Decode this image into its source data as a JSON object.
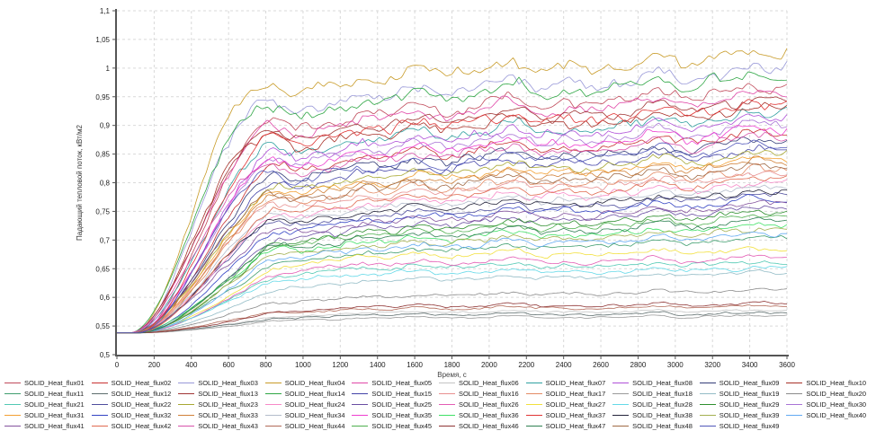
{
  "figure": {
    "background": "#ffffff",
    "x_axis_title": "Время, с",
    "y_axis_title": "Падающий тепловой поток, кВт/м2"
  },
  "chart_data": {
    "type": "line",
    "title": "",
    "xlabel": "Время, с",
    "ylabel": "Падающий тепловой поток, кВт/м2",
    "xlim": [
      0,
      3600
    ],
    "ylim": [
      0.5,
      1.1
    ],
    "x_ticks": [
      0,
      200,
      400,
      600,
      800,
      1000,
      1200,
      1400,
      1600,
      1800,
      2000,
      2200,
      2400,
      2600,
      2800,
      3000,
      3200,
      3400,
      3600
    ],
    "y_ticks": [
      0.5,
      0.55,
      0.6,
      0.65,
      0.7,
      0.75,
      0.8,
      0.85,
      0.9,
      0.95,
      1,
      1.05,
      1.1
    ],
    "y_tick_labels": [
      "0,5",
      "0,55",
      "0,6",
      "0,65",
      "0,7",
      "0,75",
      "0,8",
      "0,85",
      "0,9",
      "0,95",
      "1",
      "1,05",
      "1,1"
    ],
    "decimal_separator": ",",
    "grid": true,
    "grid_style": "dashed",
    "legend_position": "bottom",
    "shape_note": "All 49 series start near 0.538 kW/m2 at t=0, rise steeply between ~100 s and ~800 s, then fluctuate around a plateau that drifts slowly upward until t=3600 s. 'plateau' = value near t=1000 s, 'end' = value near t=3600 s.",
    "start_value": 0.538,
    "series": [
      {
        "name": "SOLID_Heat_flux01",
        "color": "#c04a5a",
        "plateau": 0.905,
        "end": 0.968
      },
      {
        "name": "SOLID_Heat_flux02",
        "color": "#c83232",
        "plateau": 0.832,
        "end": 0.888
      },
      {
        "name": "SOLID_Heat_flux03",
        "color": "#9898d8",
        "plateau": 0.935,
        "end": 1.0
      },
      {
        "name": "SOLID_Heat_flux04",
        "color": "#c89b28",
        "plateau": 0.965,
        "end": 1.03
      },
      {
        "name": "SOLID_Heat_flux05",
        "color": "#e048a8",
        "plateau": 0.895,
        "end": 0.956
      },
      {
        "name": "SOLID_Heat_flux06",
        "color": "#c4c4c4",
        "plateau": 0.572,
        "end": 0.578
      },
      {
        "name": "SOLID_Heat_flux07",
        "color": "#2fa0a0",
        "plateau": 0.862,
        "end": 0.922
      },
      {
        "name": "SOLID_Heat_flux08",
        "color": "#b050d8",
        "plateau": 0.855,
        "end": 0.914
      },
      {
        "name": "SOLID_Heat_flux09",
        "color": "#343c78",
        "plateau": 0.818,
        "end": 0.874
      },
      {
        "name": "SOLID_Heat_flux10",
        "color": "#a83028",
        "plateau": 0.87,
        "end": 0.93
      },
      {
        "name": "SOLID_Heat_flux11",
        "color": "#3f9e6e",
        "plateau": 0.672,
        "end": 0.705
      },
      {
        "name": "SOLID_Heat_flux12",
        "color": "#5d6d6d",
        "plateau": 0.568,
        "end": 0.573
      },
      {
        "name": "SOLID_Heat_flux13",
        "color": "#a03434",
        "plateau": 0.885,
        "end": 0.945
      },
      {
        "name": "SOLID_Heat_flux14",
        "color": "#2ea644",
        "plateau": 0.925,
        "end": 0.988
      },
      {
        "name": "SOLID_Heat_flux15",
        "color": "#4343a8",
        "plateau": 0.805,
        "end": 0.86
      },
      {
        "name": "SOLID_Heat_flux16",
        "color": "#e89090",
        "plateau": 0.765,
        "end": 0.816
      },
      {
        "name": "SOLID_Heat_flux17",
        "color": "#e38a64",
        "plateau": 0.772,
        "end": 0.824
      },
      {
        "name": "SOLID_Heat_flux18",
        "color": "#9a9a9a",
        "plateau": 0.563,
        "end": 0.568
      },
      {
        "name": "SOLID_Heat_flux19",
        "color": "#93bcc6",
        "plateau": 0.625,
        "end": 0.645
      },
      {
        "name": "SOLID_Heat_flux20",
        "color": "#8a8a8a",
        "plateau": 0.598,
        "end": 0.614
      },
      {
        "name": "SOLID_Heat_flux21",
        "color": "#52c9b4",
        "plateau": 0.648,
        "end": 0.662
      },
      {
        "name": "SOLID_Heat_flux22",
        "color": "#4f4e9e",
        "plateau": 0.732,
        "end": 0.78
      },
      {
        "name": "SOLID_Heat_flux23",
        "color": "#a8a832",
        "plateau": 0.798,
        "end": 0.852
      },
      {
        "name": "SOLID_Heat_flux24",
        "color": "#f78ac8",
        "plateau": 0.752,
        "end": 0.801
      },
      {
        "name": "SOLID_Heat_flux25",
        "color": "#6a4ea2",
        "plateau": 0.714,
        "end": 0.757
      },
      {
        "name": "SOLID_Heat_flux26",
        "color": "#e35cb4",
        "plateau": 0.655,
        "end": 0.67
      },
      {
        "name": "SOLID_Heat_flux27",
        "color": "#f2e03c",
        "plateau": 0.668,
        "end": 0.684
      },
      {
        "name": "SOLID_Heat_flux28",
        "color": "#64d9e8",
        "plateau": 0.638,
        "end": 0.652
      },
      {
        "name": "SOLID_Heat_flux29",
        "color": "#2f8f2f",
        "plateau": 0.708,
        "end": 0.75
      },
      {
        "name": "SOLID_Heat_flux30",
        "color": "#a973d6",
        "plateau": 0.845,
        "end": 0.903
      },
      {
        "name": "SOLID_Heat_flux31",
        "color": "#f2a033",
        "plateau": 0.79,
        "end": 0.843
      },
      {
        "name": "SOLID_Heat_flux32",
        "color": "#3343c4",
        "plateau": 0.726,
        "end": 0.773
      },
      {
        "name": "SOLID_Heat_flux33",
        "color": "#d08038",
        "plateau": 0.785,
        "end": 0.838
      },
      {
        "name": "SOLID_Heat_flux34",
        "color": "#b3bccb",
        "plateau": 0.745,
        "end": 0.793
      },
      {
        "name": "SOLID_Heat_flux35",
        "color": "#ef3fd0",
        "plateau": 0.838,
        "end": 0.895
      },
      {
        "name": "SOLID_Heat_flux36",
        "color": "#3fe065",
        "plateau": 0.69,
        "end": 0.727
      },
      {
        "name": "SOLID_Heat_flux37",
        "color": "#e03434",
        "plateau": 0.878,
        "end": 0.938
      },
      {
        "name": "SOLID_Heat_flux38",
        "color": "#23233a",
        "plateau": 0.738,
        "end": 0.786
      },
      {
        "name": "SOLID_Heat_flux39",
        "color": "#a3b050",
        "plateau": 0.684,
        "end": 0.72
      },
      {
        "name": "SOLID_Heat_flux40",
        "color": "#62aaf2",
        "plateau": 0.678,
        "end": 0.712
      },
      {
        "name": "SOLID_Heat_flux41",
        "color": "#84539e",
        "plateau": 0.72,
        "end": 0.764
      },
      {
        "name": "SOLID_Heat_flux42",
        "color": "#e06a50",
        "plateau": 0.758,
        "end": 0.808
      },
      {
        "name": "SOLID_Heat_flux43",
        "color": "#d853ab",
        "plateau": 0.825,
        "end": 0.881
      },
      {
        "name": "SOLID_Heat_flux44",
        "color": "#b26a58",
        "plateau": 0.578,
        "end": 0.585
      },
      {
        "name": "SOLID_Heat_flux45",
        "color": "#4eb04e",
        "plateau": 0.702,
        "end": 0.742
      },
      {
        "name": "SOLID_Heat_flux46",
        "color": "#8f3434",
        "plateau": 0.582,
        "end": 0.59
      },
      {
        "name": "SOLID_Heat_flux47",
        "color": "#2f8053",
        "plateau": 0.696,
        "end": 0.735
      },
      {
        "name": "SOLID_Heat_flux48",
        "color": "#a06a45",
        "plateau": 0.778,
        "end": 0.83
      },
      {
        "name": "SOLID_Heat_flux49",
        "color": "#5057ba",
        "plateau": 0.812,
        "end": 0.868
      }
    ]
  }
}
